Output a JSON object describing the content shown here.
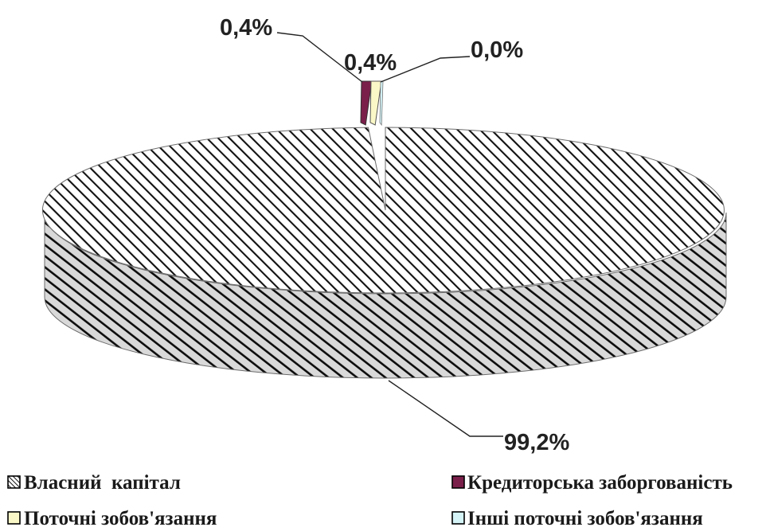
{
  "chart_data": {
    "type": "pie",
    "title": "",
    "slices": [
      {
        "name": "Власний  капітал",
        "value": 99.2,
        "label": "99,2%",
        "color": "#ffffff"
      },
      {
        "name": "Кредиторська заборгованість",
        "value": 0.4,
        "label": "0,4%",
        "color": "#7a1f4a"
      },
      {
        "name": "Поточні зобов'язання",
        "value": 0.4,
        "label": "0,4%",
        "color": "#fbf8c8"
      },
      {
        "name": "Інші поточні зобов'язання",
        "value": 0.0,
        "label": "0,0%",
        "color": "#d4f4f8"
      }
    ],
    "legend_position": "bottom",
    "style": "3d-hatched"
  }
}
